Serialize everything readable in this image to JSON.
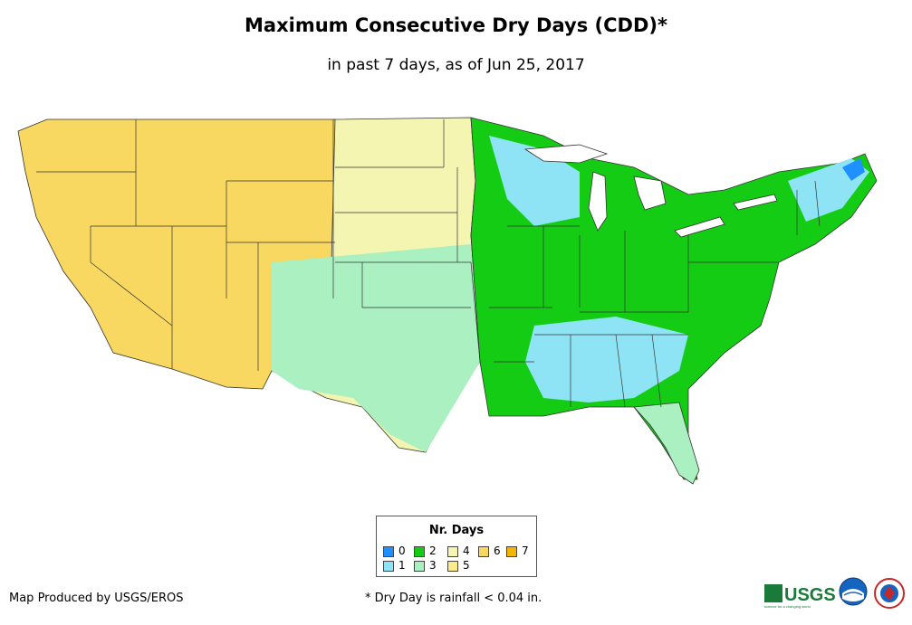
{
  "title": "Maximum Consecutive Dry Days (CDD)*",
  "subtitle": "in past 7 days, as of Jun 25, 2017",
  "legend": {
    "title": "Nr. Days",
    "items": [
      {
        "label": "0",
        "color": "#1e90ff"
      },
      {
        "label": "1",
        "color": "#8ee4f5"
      },
      {
        "label": "2",
        "color": "#15cc15"
      },
      {
        "label": "3",
        "color": "#aaf0c0"
      },
      {
        "label": "4",
        "color": "#f3f5b0"
      },
      {
        "label": "5",
        "color": "#fbeb8a"
      },
      {
        "label": "6",
        "color": "#f8d860"
      },
      {
        "label": "7",
        "color": "#f2b500"
      }
    ]
  },
  "footer": {
    "credit": "Map Produced by USGS/EROS",
    "note": "* Dry Day is rainfall < 0.04 in."
  },
  "logos": {
    "usgs_text": "USGS",
    "usgs_tagline": "science for a changing world"
  }
}
